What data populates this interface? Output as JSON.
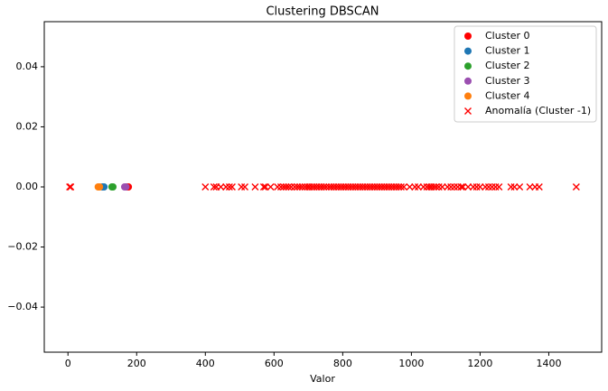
{
  "chart_data": {
    "type": "scatter",
    "title": "Clustering DBSCAN",
    "x_label": "Valor",
    "xlim": [
      -69,
      1554
    ],
    "xticks": [
      0,
      200,
      400,
      600,
      800,
      1000,
      1200,
      1400
    ],
    "ylim": [
      -0.055,
      0.055
    ],
    "yticks": [
      {
        "value": -0.04,
        "label": "−0.04"
      },
      {
        "value": -0.02,
        "label": "−0.02"
      },
      {
        "value": 0,
        "label": "0.00"
      },
      0.02,
      0.04
    ],
    "legend": "upper right",
    "grid": false,
    "series": [
      {
        "name": "Cluster 0",
        "color": "#ff0000",
        "marker": "o",
        "x": [
          172,
          176
        ],
        "values": [
          0,
          0
        ]
      },
      {
        "name": "Cluster 1",
        "color": "#1f77b4",
        "marker": "o",
        "x": [
          100,
          105
        ],
        "values": [
          0,
          0
        ]
      },
      {
        "name": "Cluster 2",
        "color": "#2ca02c",
        "marker": "o",
        "x": [
          128,
          131
        ],
        "values": [
          0,
          0
        ]
      },
      {
        "name": "Cluster 3",
        "color": "#9b4fb0",
        "marker": "o",
        "x": [
          165,
          169
        ],
        "values": [
          0,
          0
        ]
      },
      {
        "name": "Cluster 4",
        "color": "#ff7f0e",
        "marker": "o",
        "x": [
          88,
          92
        ],
        "values": [
          0,
          0
        ]
      },
      {
        "name": "Anomalía (Cluster -1)",
        "color": "#ff0000",
        "marker": "x",
        "x": [
          5,
          8,
          400,
          425,
          432,
          445,
          460,
          470,
          478,
          505,
          515,
          545,
          570,
          575,
          590,
          610,
          620,
          628,
          635,
          642,
          650,
          660,
          668,
          675,
          682,
          690,
          697,
          703,
          710,
          717,
          724,
          731,
          738,
          745,
          752,
          760,
          767,
          774,
          781,
          788,
          795,
          802,
          809,
          816,
          823,
          830,
          837,
          844,
          851,
          858,
          865,
          872,
          879,
          886,
          893,
          900,
          907,
          914,
          921,
          928,
          935,
          942,
          949,
          956,
          963,
          970,
          978,
          995,
          1010,
          1020,
          1035,
          1045,
          1052,
          1058,
          1065,
          1072,
          1080,
          1090,
          1105,
          1115,
          1125,
          1135,
          1145,
          1150,
          1165,
          1180,
          1190,
          1200,
          1215,
          1225,
          1235,
          1245,
          1255,
          1290,
          1300,
          1315,
          1345,
          1360,
          1372,
          1480
        ],
        "values": [
          0,
          0,
          0,
          0,
          0,
          0,
          0,
          0,
          0,
          0,
          0,
          0,
          0,
          0,
          0,
          0,
          0,
          0,
          0,
          0,
          0,
          0,
          0,
          0,
          0,
          0,
          0,
          0,
          0,
          0,
          0,
          0,
          0,
          0,
          0,
          0,
          0,
          0,
          0,
          0,
          0,
          0,
          0,
          0,
          0,
          0,
          0,
          0,
          0,
          0,
          0,
          0,
          0,
          0,
          0,
          0,
          0,
          0,
          0,
          0,
          0,
          0,
          0,
          0,
          0,
          0,
          0,
          0,
          0,
          0,
          0,
          0,
          0,
          0,
          0,
          0,
          0,
          0,
          0,
          0,
          0,
          0,
          0,
          0,
          0,
          0,
          0,
          0,
          0,
          0,
          0,
          0,
          0,
          0,
          0,
          0,
          0,
          0,
          0,
          0
        ]
      }
    ]
  }
}
